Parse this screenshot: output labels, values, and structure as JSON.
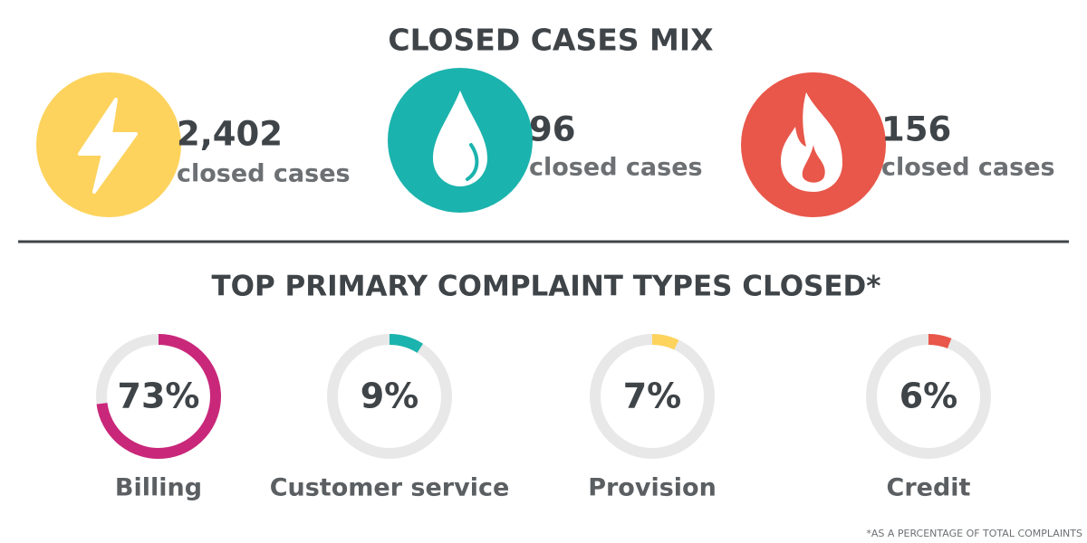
{
  "title": "CLOSED CASES MIX",
  "stats": [
    {
      "count": "2,402",
      "label": "closed cases"
    },
    {
      "count": "96",
      "label": "closed cases"
    },
    {
      "count": "156",
      "label": "closed cases"
    }
  ],
  "chart_data": {
    "type": "donut",
    "title": "TOP PRIMARY COMPLAINT TYPES CLOSED*",
    "categories": [
      "Billing",
      "Customer service",
      "Provision",
      "Credit"
    ],
    "values": [
      73,
      9,
      7,
      6
    ],
    "value_labels": [
      "73%",
      "9%",
      "7%",
      "6%"
    ],
    "colors": [
      "#c9277a",
      "#1bb3ad",
      "#fdd35d",
      "#e8574a"
    ],
    "footnote": "*AS A PERCENTAGE OF TOTAL COMPLAINTS"
  }
}
